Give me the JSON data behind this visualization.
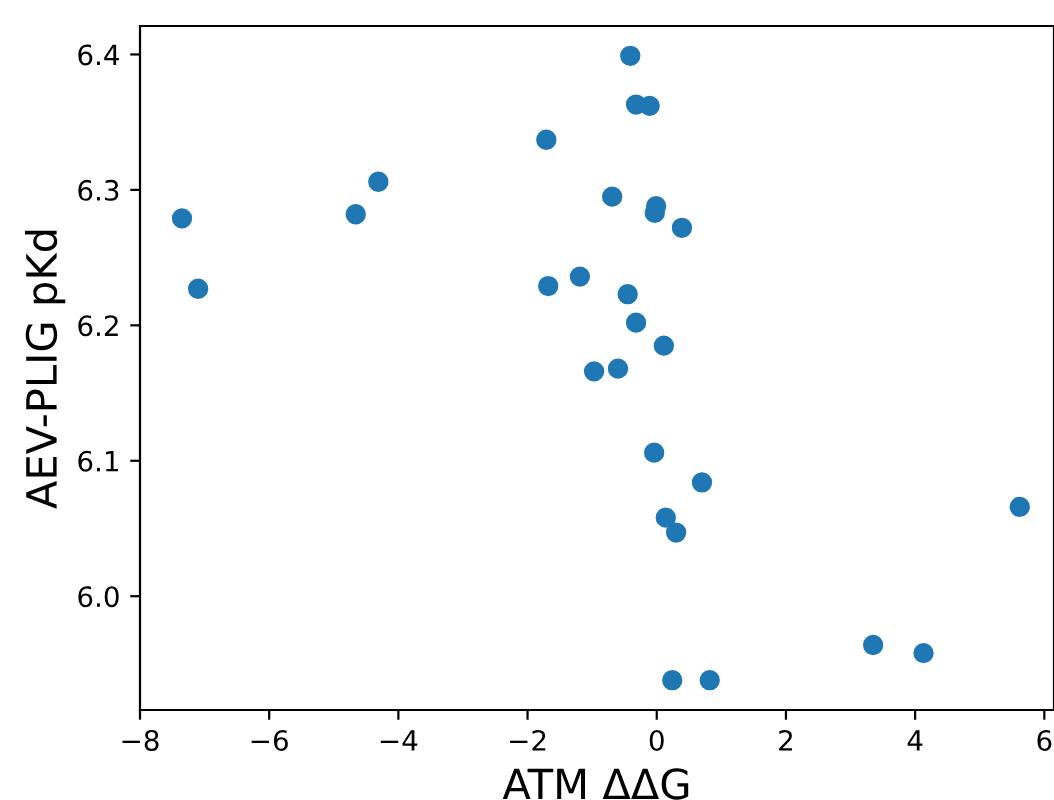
{
  "chart_data": {
    "type": "scatter",
    "xlabel": "ATM ΔΔG",
    "ylabel": "AEV-PLIG pKd",
    "x": [
      -7.35,
      -7.1,
      -4.66,
      -4.31,
      -1.71,
      -1.68,
      -1.19,
      -0.97,
      -0.69,
      -0.6,
      -0.45,
      -0.41,
      -0.32,
      -0.32,
      -0.11,
      -0.04,
      -0.01,
      -0.03,
      0.11,
      0.14,
      0.3,
      0.39,
      0.24,
      0.7,
      0.82,
      3.35,
      4.13,
      5.62
    ],
    "series": [
      {
        "color": "#1f77b4",
        "values": [
          6.279,
          6.227,
          6.282,
          6.306,
          6.337,
          6.229,
          6.236,
          6.166,
          6.295,
          6.168,
          6.223,
          6.399,
          6.363,
          6.202,
          6.362,
          6.106,
          6.288,
          6.283,
          6.185,
          6.058,
          6.047,
          6.272,
          5.938,
          6.084,
          5.938,
          5.964,
          5.958,
          6.066
        ]
      }
    ],
    "xlim": [
      -8,
      6.15
    ],
    "ylim": [
      5.916,
      6.421
    ],
    "xticks": [
      {
        "value": -8,
        "label": "−8"
      },
      {
        "value": -6,
        "label": "−6"
      },
      {
        "value": -4,
        "label": "−4"
      },
      {
        "value": -2,
        "label": "−2"
      },
      0,
      2,
      4,
      6
    ],
    "yticks": [
      {
        "value": 6.0,
        "label": "6.0"
      },
      {
        "value": 6.1,
        "label": "6.1"
      },
      {
        "value": 6.2,
        "label": "6.2"
      },
      {
        "value": 6.3,
        "label": "6.3"
      },
      {
        "value": 6.4,
        "label": "6.4"
      }
    ],
    "marker": "circle",
    "grid": false,
    "legend": false
  }
}
